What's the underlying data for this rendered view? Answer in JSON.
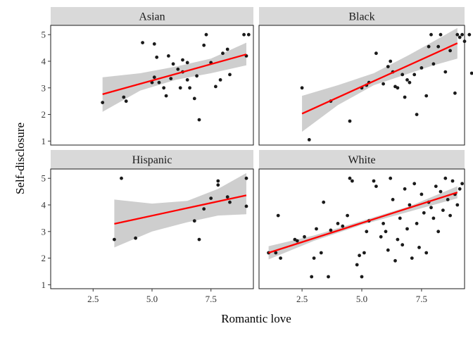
{
  "chart_data": {
    "type": "scatter",
    "xlabel": "Romantic love",
    "ylabel": "Self-disclosure",
    "xlim": [
      0.7,
      9.3
    ],
    "ylim": [
      0.85,
      5.35
    ],
    "x_ticks": [
      2.5,
      5.0,
      7.5
    ],
    "x_tick_labels": [
      "2.5",
      "5.0",
      "7.5"
    ],
    "y_ticks": [
      1,
      2,
      3,
      4,
      5
    ],
    "y_tick_labels": [
      "1",
      "2",
      "3",
      "4",
      "5"
    ],
    "grid": false,
    "point_color": "#1a1a1a",
    "fit_color": "#ff0000",
    "band_color": "#bebebe",
    "strip_color": "#d9d9d9",
    "facets": [
      {
        "label": "Asian",
        "fit": {
          "x": [
            2.9,
            9.0
          ],
          "y": [
            2.76,
            4.26
          ]
        },
        "band": {
          "x": [
            2.9,
            4.5,
            6.0,
            7.5,
            9.0
          ],
          "lower": [
            2.1,
            2.9,
            3.3,
            3.55,
            3.85
          ],
          "upper": [
            3.4,
            3.55,
            3.8,
            4.1,
            4.7
          ]
        },
        "points": [
          [
            2.9,
            2.45
          ],
          [
            3.8,
            2.65
          ],
          [
            3.9,
            2.5
          ],
          [
            4.6,
            4.7
          ],
          [
            5.0,
            3.2
          ],
          [
            5.1,
            3.4
          ],
          [
            5.1,
            4.65
          ],
          [
            5.2,
            4.15
          ],
          [
            5.3,
            3.2
          ],
          [
            5.5,
            3.0
          ],
          [
            5.6,
            2.7
          ],
          [
            5.7,
            4.2
          ],
          [
            5.8,
            3.35
          ],
          [
            5.9,
            3.9
          ],
          [
            6.1,
            3.7
          ],
          [
            6.2,
            3.0
          ],
          [
            6.3,
            4.05
          ],
          [
            6.3,
            3.6
          ],
          [
            6.5,
            3.3
          ],
          [
            6.5,
            3.95
          ],
          [
            6.6,
            3.0
          ],
          [
            6.8,
            2.6
          ],
          [
            6.9,
            3.45
          ],
          [
            7.0,
            1.8
          ],
          [
            7.2,
            4.6
          ],
          [
            7.3,
            5.0
          ],
          [
            7.5,
            3.95
          ],
          [
            7.7,
            3.05
          ],
          [
            7.9,
            3.3
          ],
          [
            8.0,
            4.3
          ],
          [
            8.2,
            4.45
          ],
          [
            8.3,
            3.5
          ],
          [
            8.9,
            5.0
          ],
          [
            9.0,
            4.2
          ],
          [
            9.1,
            5.0
          ]
        ]
      },
      {
        "label": "Black",
        "fit": {
          "x": [
            2.5,
            9.0
          ],
          "y": [
            2.03,
            4.68
          ]
        },
        "band": {
          "x": [
            2.5,
            4.0,
            5.5,
            7.0,
            8.0,
            9.0
          ],
          "lower": [
            1.35,
            2.35,
            3.1,
            3.55,
            3.85,
            4.1
          ],
          "upper": [
            2.7,
            3.1,
            3.55,
            4.25,
            4.75,
            5.25
          ]
        },
        "points": [
          [
            2.5,
            3.0
          ],
          [
            2.8,
            1.05
          ],
          [
            3.7,
            2.5
          ],
          [
            4.5,
            1.75
          ],
          [
            5.0,
            3.0
          ],
          [
            5.2,
            3.1
          ],
          [
            5.3,
            3.2
          ],
          [
            5.6,
            4.3
          ],
          [
            5.9,
            3.15
          ],
          [
            6.1,
            3.8
          ],
          [
            6.2,
            4.0
          ],
          [
            6.3,
            3.6
          ],
          [
            6.4,
            3.05
          ],
          [
            6.5,
            3.0
          ],
          [
            6.7,
            3.5
          ],
          [
            6.8,
            2.65
          ],
          [
            6.9,
            3.3
          ],
          [
            7.0,
            3.2
          ],
          [
            7.2,
            3.5
          ],
          [
            7.3,
            2.0
          ],
          [
            7.5,
            3.75
          ],
          [
            7.7,
            2.7
          ],
          [
            7.8,
            4.55
          ],
          [
            7.9,
            5.0
          ],
          [
            8.0,
            3.9
          ],
          [
            8.2,
            4.55
          ],
          [
            8.3,
            5.0
          ],
          [
            8.5,
            3.6
          ],
          [
            8.7,
            4.4
          ],
          [
            8.9,
            2.8
          ],
          [
            9.0,
            5.0
          ],
          [
            9.1,
            4.9
          ],
          [
            9.2,
            5.0
          ],
          [
            9.3,
            4.75
          ],
          [
            9.5,
            5.0
          ],
          [
            9.6,
            3.55
          ]
        ]
      },
      {
        "label": "Hispanic",
        "fit": {
          "x": [
            3.4,
            9.0
          ],
          "y": [
            3.29,
            4.36
          ]
        },
        "band": {
          "x": [
            3.4,
            5.0,
            6.5,
            7.8,
            9.0
          ],
          "lower": [
            2.4,
            3.0,
            3.35,
            3.6,
            3.65
          ],
          "upper": [
            4.2,
            4.05,
            4.15,
            4.6,
            5.2
          ]
        },
        "points": [
          [
            3.4,
            2.7
          ],
          [
            3.7,
            5.0
          ],
          [
            4.3,
            2.75
          ],
          [
            6.8,
            3.4
          ],
          [
            7.0,
            2.7
          ],
          [
            7.2,
            3.85
          ],
          [
            7.5,
            4.25
          ],
          [
            7.8,
            4.75
          ],
          [
            7.8,
            4.9
          ],
          [
            8.2,
            4.3
          ],
          [
            8.3,
            4.1
          ],
          [
            9.0,
            5.0
          ],
          [
            9.0,
            3.95
          ]
        ]
      },
      {
        "label": "White",
        "fit": {
          "x": [
            1.1,
            9.0
          ],
          "y": [
            2.2,
            4.47
          ]
        },
        "band": {
          "x": [
            1.1,
            3.0,
            5.0,
            7.0,
            9.0
          ],
          "lower": [
            1.95,
            2.65,
            3.25,
            3.75,
            4.25
          ],
          "upper": [
            2.45,
            2.85,
            3.4,
            3.95,
            4.7
          ]
        },
        "points": [
          [
            1.1,
            2.2
          ],
          [
            1.4,
            2.2
          ],
          [
            1.5,
            3.6
          ],
          [
            1.6,
            2.0
          ],
          [
            2.2,
            2.7
          ],
          [
            2.3,
            2.65
          ],
          [
            2.6,
            2.8
          ],
          [
            2.9,
            1.3
          ],
          [
            3.0,
            2.0
          ],
          [
            3.3,
            2.2
          ],
          [
            3.1,
            3.1
          ],
          [
            3.4,
            4.1
          ],
          [
            3.6,
            1.3
          ],
          [
            3.7,
            3.05
          ],
          [
            4.0,
            3.3
          ],
          [
            4.2,
            3.2
          ],
          [
            4.4,
            3.6
          ],
          [
            4.5,
            5.0
          ],
          [
            4.6,
            4.9
          ],
          [
            4.8,
            1.75
          ],
          [
            4.9,
            2.1
          ],
          [
            5.0,
            1.3
          ],
          [
            5.1,
            2.2
          ],
          [
            5.2,
            3.0
          ],
          [
            5.3,
            3.4
          ],
          [
            5.5,
            4.9
          ],
          [
            5.6,
            4.7
          ],
          [
            5.8,
            2.8
          ],
          [
            5.9,
            3.3
          ],
          [
            6.0,
            3.0
          ],
          [
            6.1,
            2.3
          ],
          [
            6.2,
            5.0
          ],
          [
            6.3,
            4.2
          ],
          [
            6.4,
            1.9
          ],
          [
            6.5,
            2.7
          ],
          [
            6.6,
            3.5
          ],
          [
            6.7,
            2.5
          ],
          [
            6.8,
            4.6
          ],
          [
            6.9,
            3.1
          ],
          [
            7.0,
            4.0
          ],
          [
            7.1,
            2.0
          ],
          [
            7.2,
            4.8
          ],
          [
            7.3,
            3.3
          ],
          [
            7.4,
            2.4
          ],
          [
            7.5,
            4.4
          ],
          [
            7.6,
            3.7
          ],
          [
            7.7,
            2.2
          ],
          [
            7.8,
            4.1
          ],
          [
            7.9,
            3.9
          ],
          [
            8.0,
            3.5
          ],
          [
            8.1,
            4.7
          ],
          [
            8.2,
            3.0
          ],
          [
            8.3,
            4.5
          ],
          [
            8.4,
            3.8
          ],
          [
            8.5,
            5.0
          ],
          [
            8.6,
            4.2
          ],
          [
            8.7,
            3.6
          ],
          [
            8.8,
            4.9
          ],
          [
            8.9,
            4.4
          ],
          [
            9.0,
            4.0
          ],
          [
            9.1,
            4.6
          ],
          [
            9.2,
            4.8
          ]
        ]
      }
    ]
  }
}
